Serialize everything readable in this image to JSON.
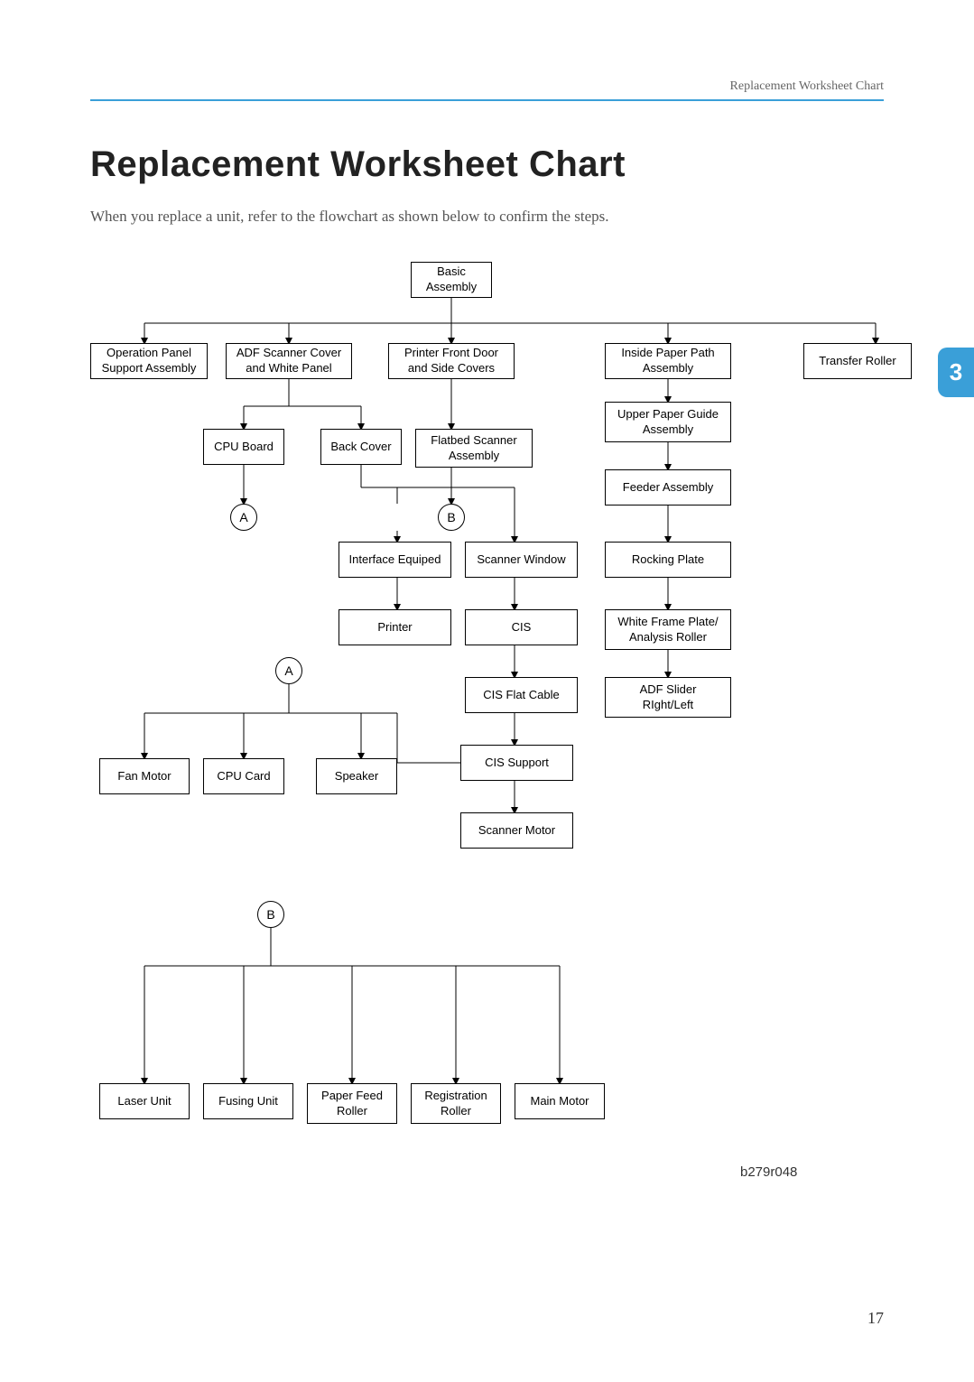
{
  "runningHead": "Replacement Worksheet Chart",
  "title": "Replacement Worksheet Chart",
  "intro": "When you replace a unit, refer to the flowchart as shown below to confirm the steps.",
  "pageTab": "3",
  "pageNum": "17",
  "figRef": "b279r048",
  "colors": {
    "accent": "#3a9fd8",
    "text": "#333",
    "muted": "#666",
    "line": "#000"
  },
  "nodes": {
    "basic": "Basic\nAssembly",
    "opPanel": "Operation Panel\nSupport Assembly",
    "adfCover": "ADF Scanner Cover\nand White Panel",
    "frontDoor": "Printer Front Door\nand Side Covers",
    "insidePath": "Inside Paper Path\nAssembly",
    "transfer": "Transfer Roller",
    "upperGuide": "Upper Paper Guide\nAssembly",
    "cpuBoard": "CPU Board",
    "backCover": "Back Cover",
    "flatbed": "Flatbed Scanner\nAssembly",
    "feeder": "Feeder Assembly",
    "interface": "Interface Equiped",
    "scanWin": "Scanner Window",
    "rocking": "Rocking Plate",
    "printer": "Printer",
    "cis": "CIS",
    "whiteFrame": "White Frame Plate/\nAnalysis Roller",
    "cisFlat": "CIS Flat Cable",
    "adfSlider": "ADF Slider\nRIght/Left",
    "cisSupport": "CIS Support",
    "fanMotor": "Fan Motor",
    "cpuCard": "CPU Card",
    "speaker": "Speaker",
    "scanMotor": "Scanner Motor",
    "laser": "Laser Unit",
    "fusing": "Fusing Unit",
    "paperFeed": "Paper Feed\nRoller",
    "reg": "Registration\nRoller",
    "mainMotor": "Main Motor",
    "A": "A",
    "B": "B"
  }
}
